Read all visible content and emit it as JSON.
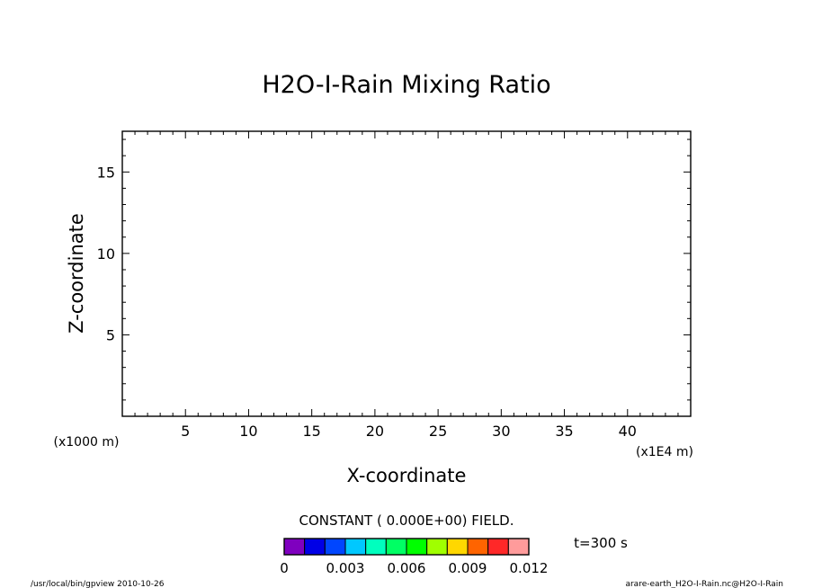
{
  "chart_data": {
    "type": "heatmap",
    "title": "H2O-I-Rain Mixing Ratio",
    "xlabel": "X-coordinate",
    "ylabel": "Z-coordinate",
    "x_unit": "(x1E4 m)",
    "y_unit": "(x1000 m)",
    "xlim": [
      0,
      45
    ],
    "ylim": [
      0,
      17.5
    ],
    "x_ticks": [
      5,
      10,
      15,
      20,
      25,
      30,
      35,
      40
    ],
    "y_ticks": [
      5,
      10,
      15
    ],
    "x_minor_step": 1,
    "y_minor_step": 1,
    "field_note": "CONSTANT ( 0.000E+00) FIELD.",
    "field_value": 0,
    "time_label": "t=300 s",
    "colorbar": {
      "colors": [
        "#7f00bf",
        "#0000e6",
        "#0046ff",
        "#00c8ff",
        "#00ffbe",
        "#00ff64",
        "#00ff00",
        "#a0ff00",
        "#ffd700",
        "#ff6400",
        "#ff2828",
        "#ff9b9b"
      ],
      "tick_values": [
        0,
        0.003,
        0.006,
        0.009,
        0.012
      ],
      "tick_labels": [
        "0",
        "0.003",
        "0.006",
        "0.009",
        "0.012"
      ]
    }
  },
  "footer": {
    "left": "/usr/local/bin/gpview  2010-10-26",
    "right": "arare-earth_H2O-I-Rain.nc@H2O-I-Rain"
  }
}
